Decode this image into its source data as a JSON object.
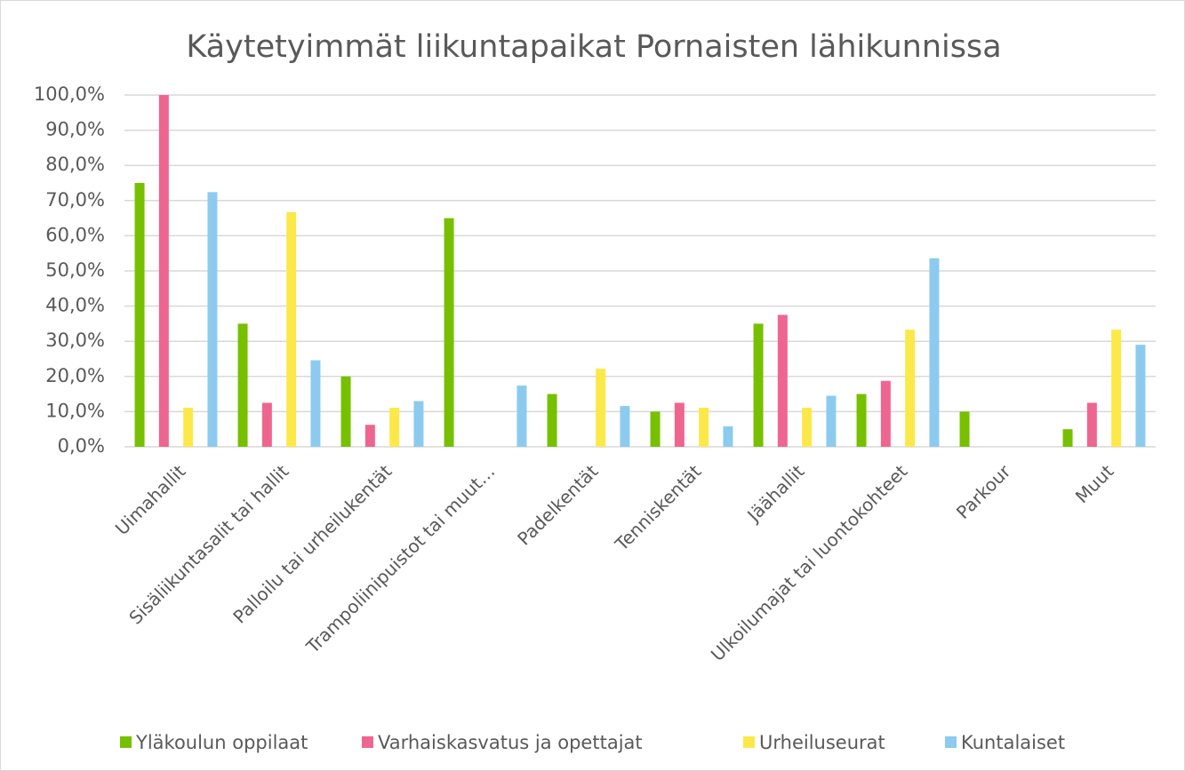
{
  "chart_data": {
    "type": "bar",
    "title": "Käytetyimmät liikuntapaikat Pornaisten lähikunnissa",
    "categories": [
      "Uimahallit",
      "Sisäliikuntasalit tai hallit",
      "Palloilu tai urheilukentät",
      "Trampoliinipuistot tai muut…",
      "Padelkentät",
      "Tenniskentät",
      "Jäähallit",
      "Ulkoilumajat tai luontokohteet",
      "Parkour",
      "Muut"
    ],
    "series": [
      {
        "name": "Yläkoulun oppilaat",
        "color": "#77c000",
        "values": [
          75,
          35,
          20,
          65,
          15,
          10,
          35,
          15,
          10,
          5
        ]
      },
      {
        "name": "Varhaiskasvatus ja opettajat",
        "color": "#ee6690",
        "values": [
          100,
          12.5,
          6.25,
          0,
          0,
          12.5,
          37.5,
          18.75,
          0,
          12.5
        ]
      },
      {
        "name": "Urheiluseurat",
        "color": "#fde84a",
        "values": [
          11.1,
          66.7,
          11.1,
          0,
          22.2,
          11.1,
          11.1,
          33.3,
          0,
          33.3
        ]
      },
      {
        "name": "Kuntalaiset",
        "color": "#8ccbef",
        "values": [
          72.4,
          24.6,
          13,
          17.4,
          11.6,
          5.8,
          14.5,
          53.6,
          0,
          29
        ]
      }
    ],
    "ylim": [
      0,
      100
    ],
    "yticks": [
      {
        "value": 0,
        "label": "0,0%"
      },
      {
        "value": 10,
        "label": "10,0%"
      },
      {
        "value": 20,
        "label": "20,0%"
      },
      {
        "value": 30,
        "label": "30,0%"
      },
      {
        "value": 40,
        "label": "40,0%"
      },
      {
        "value": 50,
        "label": "50,0%"
      },
      {
        "value": 60,
        "label": "60,0%"
      },
      {
        "value": 70,
        "label": "70,0%"
      },
      {
        "value": 80,
        "label": "80,0%"
      },
      {
        "value": 90,
        "label": "90,0%"
      },
      {
        "value": 100,
        "label": "100,0%"
      }
    ],
    "grid": true,
    "legend": "bottom"
  }
}
